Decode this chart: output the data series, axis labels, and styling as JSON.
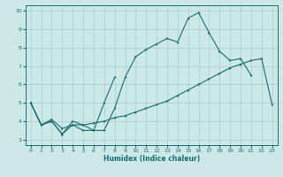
{
  "title": "",
  "xlabel": "Humidex (Indice chaleur)",
  "bg_color": "#cce8e8",
  "grid_color": "#aacccc",
  "line_color": "#1a6e6e",
  "xlim": [
    -0.5,
    23.5
  ],
  "ylim": [
    2.7,
    10.3
  ],
  "xticks": [
    0,
    1,
    2,
    3,
    4,
    5,
    6,
    7,
    8,
    9,
    10,
    11,
    12,
    13,
    14,
    15,
    16,
    17,
    18,
    19,
    20,
    21,
    22,
    23
  ],
  "yticks": [
    3,
    4,
    5,
    6,
    7,
    8,
    9,
    10
  ],
  "line1_x": [
    0,
    1,
    2,
    3,
    4,
    5,
    6,
    7,
    8,
    9,
    10,
    11,
    12,
    13,
    14,
    15,
    16,
    17,
    18,
    19,
    20,
    21,
    22,
    23
  ],
  "line1_y": [
    5.0,
    3.8,
    4.0,
    3.3,
    3.8,
    3.5,
    3.5,
    3.5,
    4.7,
    6.4,
    7.5,
    7.9,
    8.2,
    8.5,
    8.3,
    9.6,
    9.9,
    8.8,
    7.8,
    7.3,
    7.4,
    6.5,
    null,
    null
  ],
  "line2_x": [
    0,
    1,
    2,
    3,
    4,
    5,
    6,
    7,
    8,
    9,
    10,
    11,
    12,
    13,
    14,
    15,
    16,
    17,
    18,
    19,
    20,
    21,
    22,
    23
  ],
  "line2_y": [
    5.0,
    3.8,
    4.0,
    3.3,
    4.0,
    3.8,
    3.5,
    5.0,
    6.4,
    null,
    null,
    null,
    null,
    null,
    null,
    null,
    null,
    null,
    null,
    null,
    null,
    null,
    null,
    null
  ],
  "line3_x": [
    0,
    1,
    2,
    3,
    4,
    5,
    6,
    7,
    8,
    9,
    10,
    11,
    12,
    13,
    14,
    15,
    16,
    17,
    18,
    19,
    20,
    21,
    22,
    23
  ],
  "line3_y": [
    5.0,
    3.8,
    4.1,
    3.6,
    3.8,
    3.8,
    3.9,
    4.0,
    4.2,
    4.3,
    4.5,
    4.7,
    4.9,
    5.1,
    5.4,
    5.7,
    6.0,
    6.3,
    6.6,
    6.9,
    7.1,
    7.3,
    7.4,
    4.9
  ]
}
